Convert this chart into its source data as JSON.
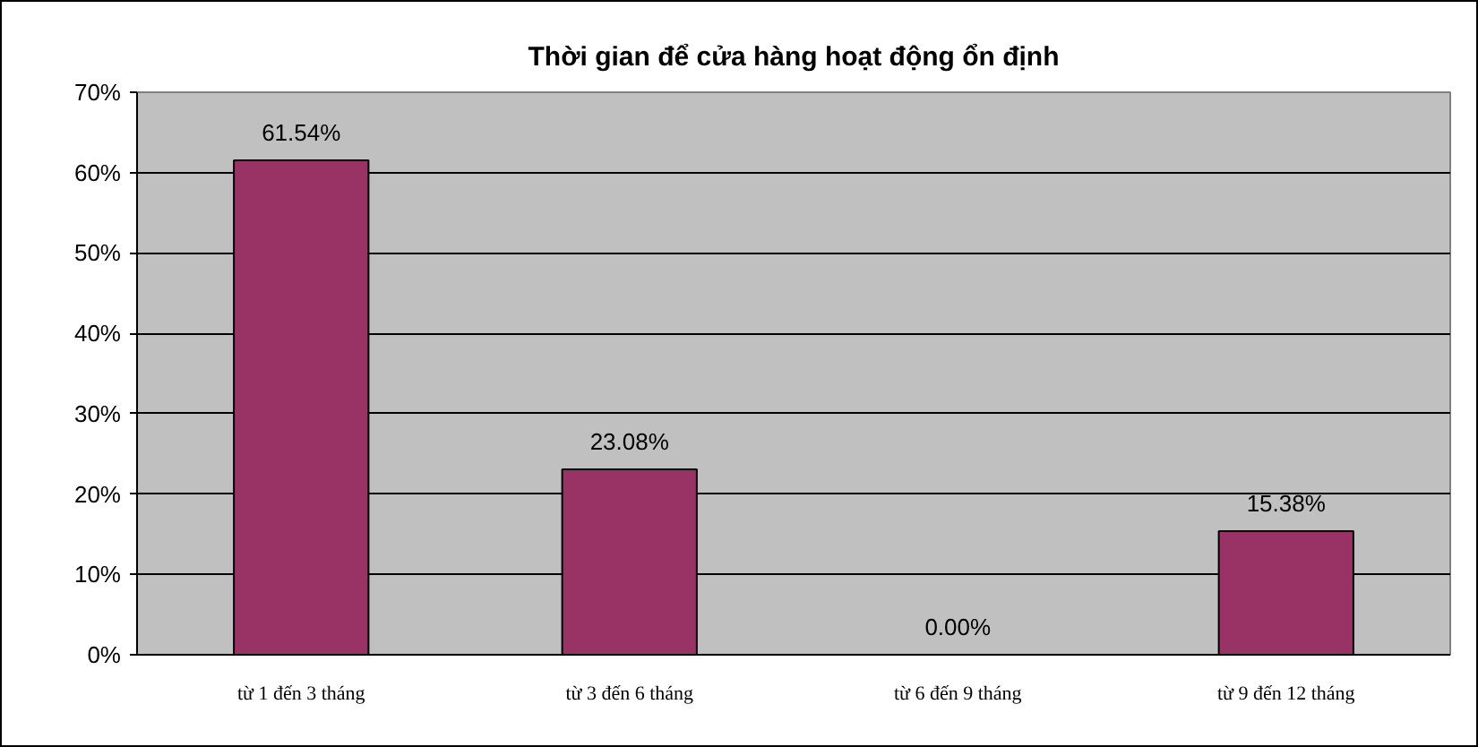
{
  "chart_data": {
    "type": "bar",
    "title": "Thời gian để cửa hàng hoạt động ổn định",
    "categories": [
      "từ 1 đến 3 tháng",
      "từ 3 đến 6 tháng",
      "từ 6 đến 9 tháng",
      "từ 9 đến 12 tháng"
    ],
    "values": [
      61.54,
      23.08,
      0.0,
      15.38
    ],
    "value_labels": [
      "61.54%",
      "23.08%",
      "0.00%",
      "15.38%"
    ],
    "color": "#993366",
    "ylim": [
      0,
      70
    ],
    "yticks": [
      {
        "value": 0,
        "label": "0%"
      },
      {
        "value": 10,
        "label": "10%"
      },
      {
        "value": 20,
        "label": "20%"
      },
      {
        "value": 30,
        "label": "30%"
      },
      {
        "value": 40,
        "label": "40%"
      },
      {
        "value": 50,
        "label": "50%"
      },
      {
        "value": 60,
        "label": "60%"
      },
      {
        "value": 70,
        "label": "70%"
      }
    ],
    "grid": "y"
  }
}
